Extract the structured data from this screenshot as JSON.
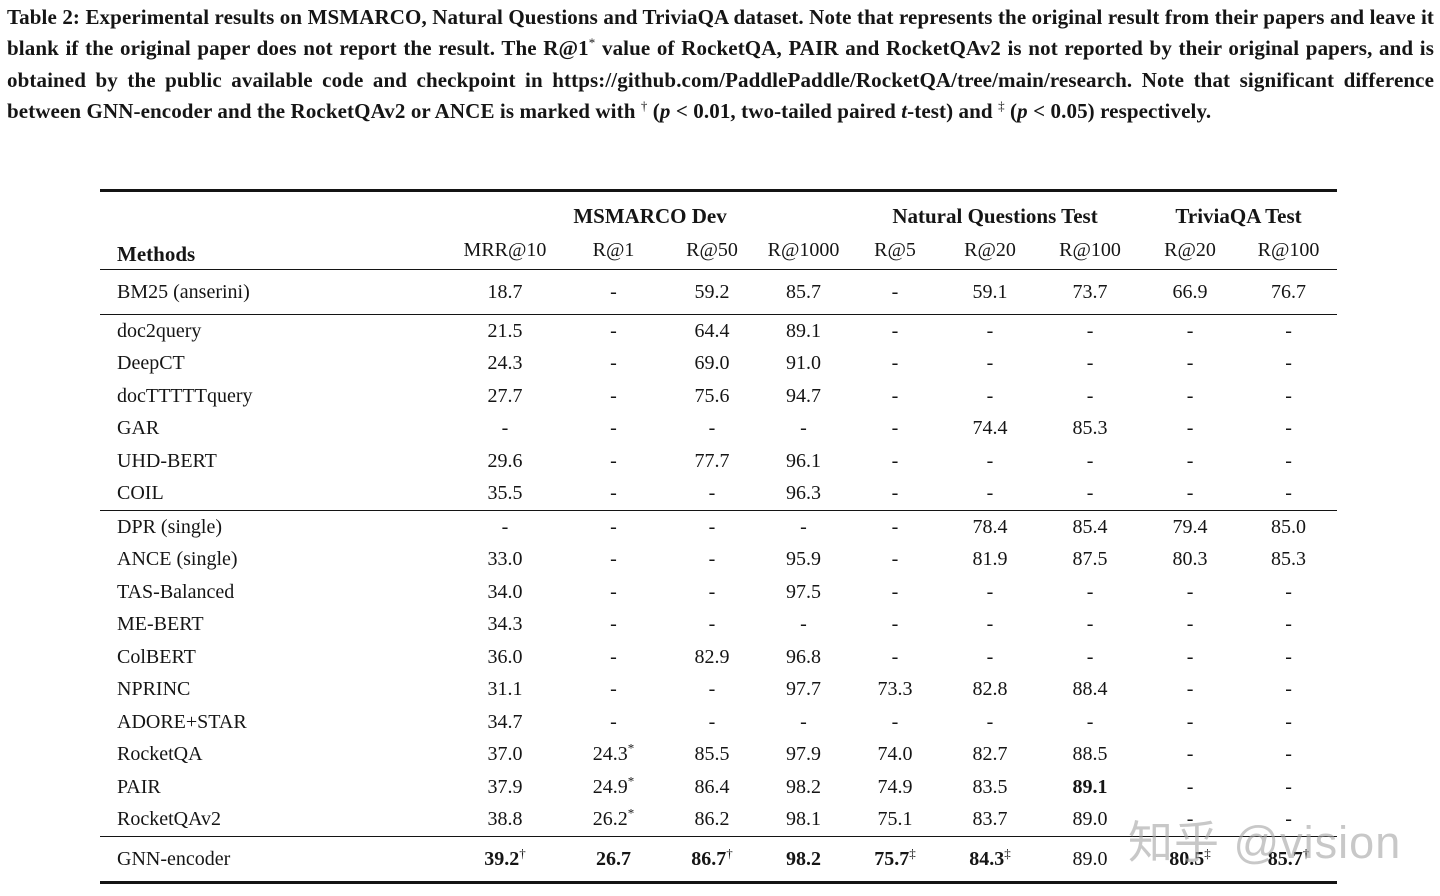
{
  "caption": {
    "p1": "Table 2: Experimental results on MSMARCO, Natural Questions and TriviaQA dataset. Note that represents the original result from their papers and leave it blank if the original paper does not report the result. The R@1",
    "sup_star": "*",
    "p2": " value of RocketQA, PAIR and RocketQAv2 is not reported by their original papers, and is obtained by the public available code and checkpoint in https://github.com/PaddlePaddle/RocketQA/tree/main/research. Note that significant difference between GNN-encoder and the RocketQAv2 or ANCE is marked with ",
    "sup_dagger": "†",
    "p3": " (",
    "p_italic1": "p",
    "p4": " < 0.01, two-tailed paired ",
    "t_italic1": "t",
    "p5": "-test) and ",
    "sup_ddagger": "‡",
    "p6": " (",
    "p_italic2": "p",
    "p7": " < 0.05) respectively."
  },
  "table": {
    "methods_header": "Methods",
    "col_groups": [
      {
        "label": "MSMARCO Dev",
        "span": 4
      },
      {
        "label": "Natural Questions Test",
        "span": 3
      },
      {
        "label": "TriviaQA Test",
        "span": 2
      }
    ],
    "sub_headers": [
      "MRR@10",
      "R@1",
      "R@50",
      "R@1000",
      "R@5",
      "R@20",
      "R@100",
      "R@20",
      "R@100"
    ],
    "groups": [
      {
        "tall": true,
        "rows": [
          [
            "BM25 (anserini)",
            "18.7",
            "-",
            "59.2",
            "85.7",
            "-",
            "59.1",
            "73.7",
            "66.9",
            "76.7"
          ]
        ]
      },
      {
        "rows": [
          [
            "doc2query",
            "21.5",
            "-",
            "64.4",
            "89.1",
            "-",
            "-",
            "-",
            "-",
            "-"
          ],
          [
            "DeepCT",
            "24.3",
            "-",
            "69.0",
            "91.0",
            "-",
            "-",
            "-",
            "-",
            "-"
          ],
          [
            "docTTTTTquery",
            "27.7",
            "-",
            "75.6",
            "94.7",
            "-",
            "-",
            "-",
            "-",
            "-"
          ],
          [
            "GAR",
            "-",
            "-",
            "-",
            "-",
            "-",
            "74.4",
            "85.3",
            "-",
            "-"
          ],
          [
            "UHD-BERT",
            "29.6",
            "-",
            "77.7",
            "96.1",
            "-",
            "-",
            "-",
            "-",
            "-"
          ],
          [
            "COIL",
            "35.5",
            "-",
            "-",
            "96.3",
            "-",
            "-",
            "-",
            "-",
            "-"
          ]
        ]
      },
      {
        "rows": [
          [
            "DPR (single)",
            "-",
            "-",
            "-",
            "-",
            "-",
            "78.4",
            "85.4",
            "79.4",
            "85.0"
          ],
          [
            "ANCE (single)",
            "33.0",
            "-",
            "-",
            "95.9",
            "-",
            "81.9",
            "87.5",
            "80.3",
            "85.3"
          ],
          [
            "TAS-Balanced",
            "34.0",
            "-",
            "-",
            "97.5",
            "-",
            "-",
            "-",
            "-",
            "-"
          ],
          [
            "ME-BERT",
            "34.3",
            "-",
            "-",
            "-",
            "-",
            "-",
            "-",
            "-",
            "-"
          ],
          [
            "ColBERT",
            "36.0",
            "-",
            "82.9",
            "96.8",
            "-",
            "-",
            "-",
            "-",
            "-"
          ],
          [
            "NPRINC",
            "31.1",
            "-",
            "-",
            "97.7",
            "73.3",
            "82.8",
            "88.4",
            "-",
            "-"
          ],
          [
            "ADORE+STAR",
            "34.7",
            "-",
            "-",
            "-",
            "-",
            "-",
            "-",
            "-",
            "-"
          ],
          [
            "RocketQA",
            "37.0",
            {
              "v": "24.3",
              "sup": "*"
            },
            "85.5",
            "97.9",
            "74.0",
            "82.7",
            "88.5",
            "-",
            "-"
          ],
          [
            "PAIR",
            "37.9",
            {
              "v": "24.9",
              "sup": "*"
            },
            "86.4",
            "98.2",
            "74.9",
            "83.5",
            {
              "v": "89.1",
              "bold": true
            },
            "-",
            "-"
          ],
          [
            "RocketQAv2",
            "38.8",
            {
              "v": "26.2",
              "sup": "*"
            },
            "86.2",
            "98.1",
            "75.1",
            "83.7",
            "89.0",
            "-",
            "-"
          ]
        ]
      },
      {
        "tall": true,
        "rows": [
          [
            "GNN-encoder",
            {
              "v": "39.2",
              "sup": "†",
              "bold": true
            },
            {
              "v": "26.7",
              "bold": true
            },
            {
              "v": "86.7",
              "sup": "†",
              "bold": true
            },
            {
              "v": "98.2",
              "bold": true
            },
            {
              "v": "75.7",
              "sup": "‡",
              "bold": true
            },
            {
              "v": "84.3",
              "sup": "‡",
              "bold": true
            },
            "89.0",
            {
              "v": "80.5",
              "sup": "‡",
              "bold": true
            },
            {
              "v": "85.7",
              "sup": "†",
              "bold": true
            }
          ]
        ]
      }
    ]
  },
  "watermark": {
    "text": "知乎 @vision",
    "color": "#a8a8a8"
  }
}
